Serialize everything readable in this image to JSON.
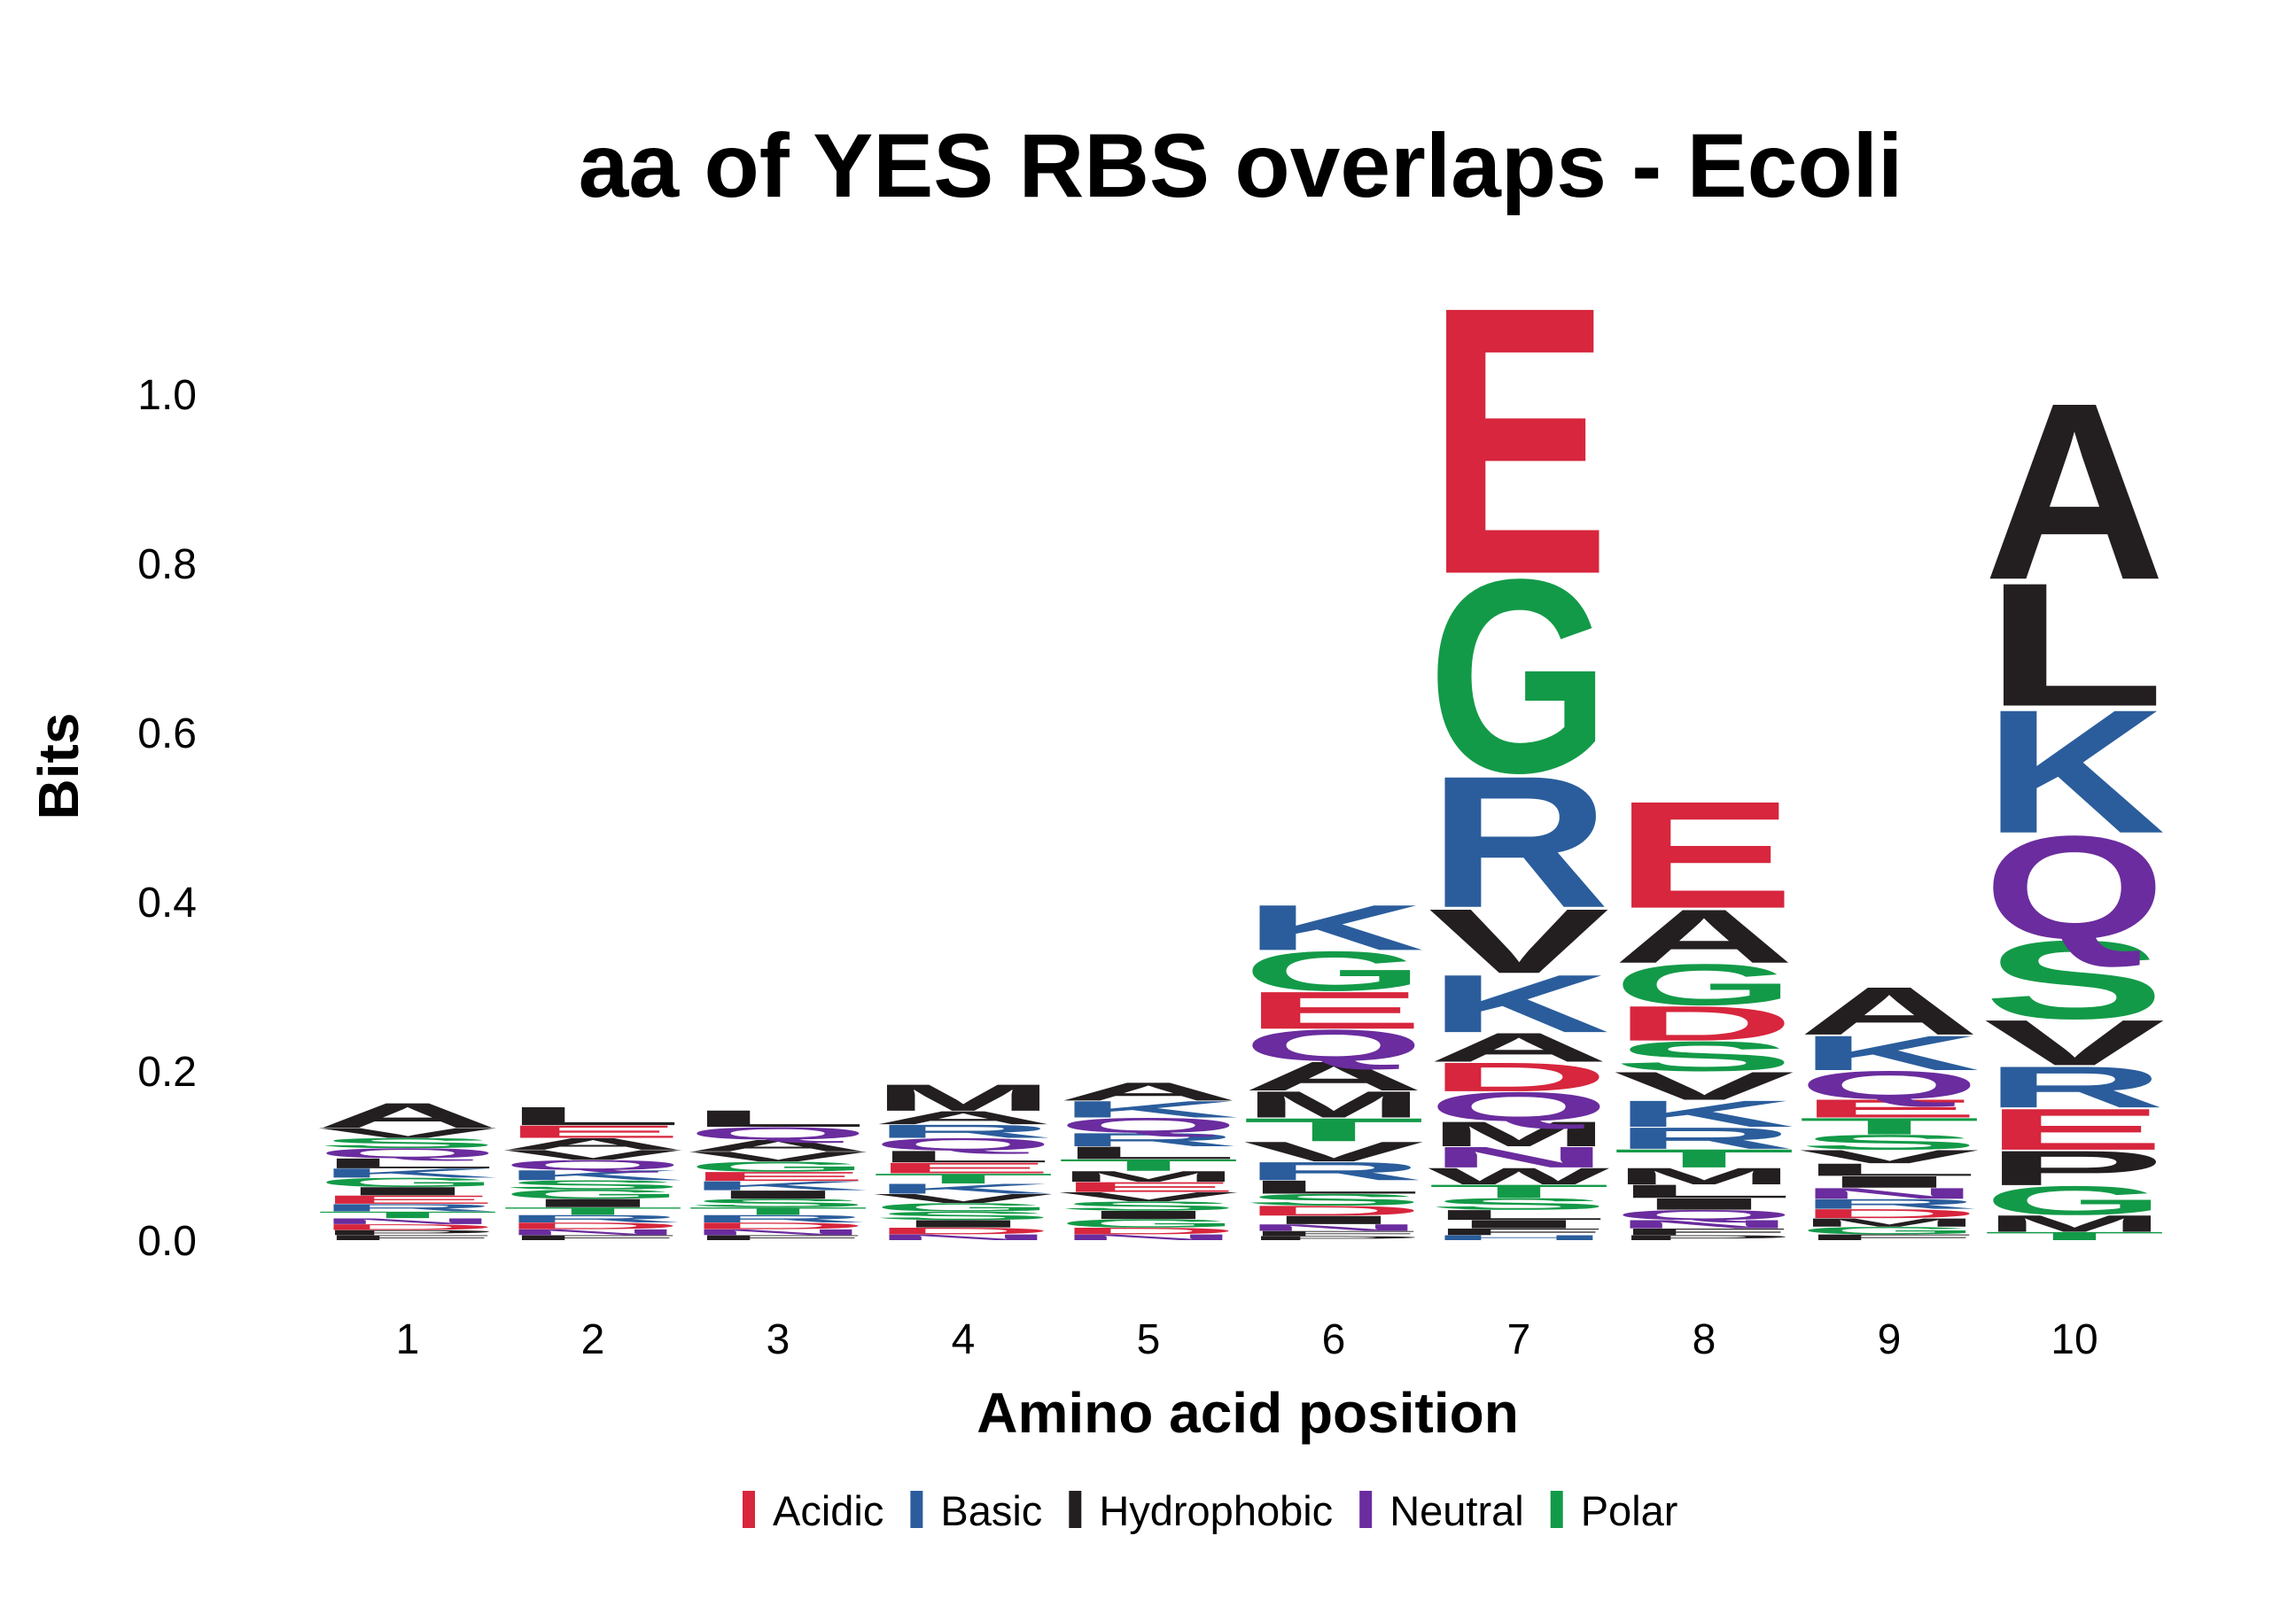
{
  "chart_data": {
    "type": "sequence-logo",
    "title": "aa of YES RBS overlaps - Ecoli",
    "xlabel": "Amino acid position",
    "ylabel": "Bits",
    "ylim": [
      0,
      1.1
    ],
    "yticks": [
      "0.0",
      "0.2",
      "0.4",
      "0.6",
      "0.8",
      "1.0"
    ],
    "ytick_values": [
      0,
      0.2,
      0.4,
      0.6,
      0.8,
      1.0
    ],
    "positions": [
      "1",
      "2",
      "3",
      "4",
      "5",
      "6",
      "7",
      "8",
      "9",
      "10"
    ],
    "legend": {
      "placement": "bottom",
      "items": [
        {
          "label": "Acidic",
          "color": "#d7263d"
        },
        {
          "label": "Basic",
          "color": "#2b5d9c"
        },
        {
          "label": "Hydrophobic",
          "color": "#231f20"
        },
        {
          "label": "Neutral",
          "color": "#6a2c9e"
        },
        {
          "label": "Polar",
          "color": "#139a48"
        }
      ]
    },
    "group_colors": {
      "Acidic": "#d7263d",
      "Basic": "#2b5d9c",
      "Hydrophobic": "#231f20",
      "Neutral": "#6a2c9e",
      "Polar": "#139a48"
    },
    "columns": [
      {
        "position": 1,
        "letters": [
          {
            "aa": "A",
            "bits": 0.03,
            "group": "Hydrophobic"
          },
          {
            "aa": "L",
            "bits": 0.012,
            "group": "Hydrophobic"
          },
          {
            "aa": "Q",
            "bits": 0.012,
            "group": "Neutral"
          },
          {
            "aa": "S",
            "bits": 0.012,
            "group": "Polar"
          },
          {
            "aa": "V",
            "bits": 0.012,
            "group": "Hydrophobic"
          },
          {
            "aa": "G",
            "bits": 0.011,
            "group": "Polar"
          },
          {
            "aa": "K",
            "bits": 0.011,
            "group": "Basic"
          },
          {
            "aa": "E",
            "bits": 0.01,
            "group": "Acidic"
          },
          {
            "aa": "I",
            "bits": 0.01,
            "group": "Hydrophobic"
          },
          {
            "aa": "R",
            "bits": 0.009,
            "group": "Basic"
          },
          {
            "aa": "T",
            "bits": 0.008,
            "group": "Polar"
          },
          {
            "aa": "D",
            "bits": 0.007,
            "group": "Acidic"
          },
          {
            "aa": "N",
            "bits": 0.007,
            "group": "Neutral"
          },
          {
            "aa": "F",
            "bits": 0.006,
            "group": "Hydrophobic"
          },
          {
            "aa": "P",
            "bits": 0.006,
            "group": "Hydrophobic"
          }
        ]
      },
      {
        "position": 2,
        "letters": [
          {
            "aa": "L",
            "bits": 0.022,
            "group": "Hydrophobic"
          },
          {
            "aa": "E",
            "bits": 0.015,
            "group": "Acidic"
          },
          {
            "aa": "A",
            "bits": 0.014,
            "group": "Hydrophobic"
          },
          {
            "aa": "K",
            "bits": 0.012,
            "group": "Basic"
          },
          {
            "aa": "Q",
            "bits": 0.012,
            "group": "Neutral"
          },
          {
            "aa": "V",
            "bits": 0.012,
            "group": "Hydrophobic"
          },
          {
            "aa": "G",
            "bits": 0.011,
            "group": "Polar"
          },
          {
            "aa": "S",
            "bits": 0.011,
            "group": "Polar"
          },
          {
            "aa": "I",
            "bits": 0.01,
            "group": "Hydrophobic"
          },
          {
            "aa": "R",
            "bits": 0.009,
            "group": "Basic"
          },
          {
            "aa": "T",
            "bits": 0.009,
            "group": "Polar"
          },
          {
            "aa": "D",
            "bits": 0.008,
            "group": "Acidic"
          },
          {
            "aa": "N",
            "bits": 0.007,
            "group": "Neutral"
          },
          {
            "aa": "F",
            "bits": 0.006,
            "group": "Hydrophobic"
          }
        ]
      },
      {
        "position": 3,
        "letters": [
          {
            "aa": "L",
            "bits": 0.02,
            "group": "Hydrophobic"
          },
          {
            "aa": "Q",
            "bits": 0.015,
            "group": "Neutral"
          },
          {
            "aa": "A",
            "bits": 0.014,
            "group": "Hydrophobic"
          },
          {
            "aa": "G",
            "bits": 0.012,
            "group": "Polar"
          },
          {
            "aa": "V",
            "bits": 0.012,
            "group": "Hydrophobic"
          },
          {
            "aa": "K",
            "bits": 0.011,
            "group": "Basic"
          },
          {
            "aa": "E",
            "bits": 0.011,
            "group": "Acidic"
          },
          {
            "aa": "S",
            "bits": 0.01,
            "group": "Polar"
          },
          {
            "aa": "I",
            "bits": 0.01,
            "group": "Hydrophobic"
          },
          {
            "aa": "R",
            "bits": 0.009,
            "group": "Basic"
          },
          {
            "aa": "T",
            "bits": 0.009,
            "group": "Polar"
          },
          {
            "aa": "D",
            "bits": 0.008,
            "group": "Acidic"
          },
          {
            "aa": "N",
            "bits": 0.007,
            "group": "Neutral"
          },
          {
            "aa": "F",
            "bits": 0.006,
            "group": "Hydrophobic"
          }
        ]
      },
      {
        "position": 4,
        "letters": [
          {
            "aa": "M",
            "bits": 0.032,
            "group": "Hydrophobic"
          },
          {
            "aa": "R",
            "bits": 0.016,
            "group": "Basic"
          },
          {
            "aa": "A",
            "bits": 0.016,
            "group": "Hydrophobic"
          },
          {
            "aa": "Q",
            "bits": 0.015,
            "group": "Neutral"
          },
          {
            "aa": "L",
            "bits": 0.014,
            "group": "Hydrophobic"
          },
          {
            "aa": "E",
            "bits": 0.013,
            "group": "Acidic"
          },
          {
            "aa": "K",
            "bits": 0.012,
            "group": "Basic"
          },
          {
            "aa": "T",
            "bits": 0.012,
            "group": "Polar"
          },
          {
            "aa": "V",
            "bits": 0.011,
            "group": "Hydrophobic"
          },
          {
            "aa": "S",
            "bits": 0.01,
            "group": "Polar"
          },
          {
            "aa": "G",
            "bits": 0.01,
            "group": "Polar"
          },
          {
            "aa": "I",
            "bits": 0.009,
            "group": "Hydrophobic"
          },
          {
            "aa": "D",
            "bits": 0.008,
            "group": "Acidic"
          },
          {
            "aa": "N",
            "bits": 0.007,
            "group": "Neutral"
          }
        ]
      },
      {
        "position": 5,
        "letters": [
          {
            "aa": "A",
            "bits": 0.022,
            "group": "Hydrophobic"
          },
          {
            "aa": "K",
            "bits": 0.02,
            "group": "Basic"
          },
          {
            "aa": "Q",
            "bits": 0.018,
            "group": "Neutral"
          },
          {
            "aa": "R",
            "bits": 0.016,
            "group": "Basic"
          },
          {
            "aa": "L",
            "bits": 0.015,
            "group": "Hydrophobic"
          },
          {
            "aa": "T",
            "bits": 0.014,
            "group": "Polar"
          },
          {
            "aa": "M",
            "bits": 0.013,
            "group": "Hydrophobic"
          },
          {
            "aa": "E",
            "bits": 0.012,
            "group": "Acidic"
          },
          {
            "aa": "S",
            "bits": 0.011,
            "group": "Polar"
          },
          {
            "aa": "V",
            "bits": 0.011,
            "group": "Hydrophobic"
          },
          {
            "aa": "G",
            "bits": 0.01,
            "group": "Polar"
          },
          {
            "aa": "I",
            "bits": 0.01,
            "group": "Hydrophobic"
          },
          {
            "aa": "D",
            "bits": 0.008,
            "group": "Acidic"
          },
          {
            "aa": "N",
            "bits": 0.007,
            "group": "Neutral"
          }
        ]
      },
      {
        "position": 6,
        "letters": [
          {
            "aa": "K",
            "bits": 0.055,
            "group": "Basic"
          },
          {
            "aa": "G",
            "bits": 0.048,
            "group": "Polar"
          },
          {
            "aa": "E",
            "bits": 0.045,
            "group": "Acidic"
          },
          {
            "aa": "Q",
            "bits": 0.038,
            "group": "Neutral"
          },
          {
            "aa": "A",
            "bits": 0.035,
            "group": "Hydrophobic"
          },
          {
            "aa": "M",
            "bits": 0.032,
            "group": "Hydrophobic"
          },
          {
            "aa": "T",
            "bits": 0.028,
            "group": "Polar"
          },
          {
            "aa": "V",
            "bits": 0.024,
            "group": "Hydrophobic"
          },
          {
            "aa": "R",
            "bits": 0.022,
            "group": "Basic"
          },
          {
            "aa": "L",
            "bits": 0.016,
            "group": "Hydrophobic"
          },
          {
            "aa": "S",
            "bits": 0.014,
            "group": "Polar"
          },
          {
            "aa": "D",
            "bits": 0.012,
            "group": "Acidic"
          },
          {
            "aa": "I",
            "bits": 0.01,
            "group": "Hydrophobic"
          },
          {
            "aa": "N",
            "bits": 0.008,
            "group": "Neutral"
          },
          {
            "aa": "F",
            "bits": 0.006,
            "group": "Hydrophobic"
          },
          {
            "aa": "P",
            "bits": 0.005,
            "group": "Hydrophobic"
          }
        ]
      },
      {
        "position": 7,
        "letters": [
          {
            "aa": "E",
            "bits": 0.325,
            "group": "Acidic"
          },
          {
            "aa": "G",
            "bits": 0.235,
            "group": "Polar"
          },
          {
            "aa": "R",
            "bits": 0.16,
            "group": "Basic"
          },
          {
            "aa": "V",
            "bits": 0.078,
            "group": "Hydrophobic"
          },
          {
            "aa": "K",
            "bits": 0.07,
            "group": "Basic"
          },
          {
            "aa": "Q",
            "bits": 0.035,
            "group": "Neutral"
          },
          {
            "aa": "D",
            "bits": 0.035,
            "group": "Acidic"
          },
          {
            "aa": "A",
            "bits": 0.035,
            "group": "Hydrophobic"
          },
          {
            "aa": "M",
            "bits": 0.03,
            "group": "Hydrophobic"
          },
          {
            "aa": "N",
            "bits": 0.025,
            "group": "Neutral"
          },
          {
            "aa": "W",
            "bits": 0.02,
            "group": "Hydrophobic"
          },
          {
            "aa": "T",
            "bits": 0.016,
            "group": "Polar"
          },
          {
            "aa": "S",
            "bits": 0.014,
            "group": "Polar"
          },
          {
            "aa": "L",
            "bits": 0.012,
            "group": "Hydrophobic"
          },
          {
            "aa": "I",
            "bits": 0.01,
            "group": "Hydrophobic"
          },
          {
            "aa": "F",
            "bits": 0.008,
            "group": "Hydrophobic"
          },
          {
            "aa": "H",
            "bits": 0.006,
            "group": "Basic"
          }
        ]
      },
      {
        "position": 8,
        "letters": [
          {
            "aa": "E",
            "bits": 0.13,
            "group": "Acidic"
          },
          {
            "aa": "A",
            "bits": 0.065,
            "group": "Hydrophobic"
          },
          {
            "aa": "G",
            "bits": 0.05,
            "group": "Polar"
          },
          {
            "aa": "D",
            "bits": 0.042,
            "group": "Acidic"
          },
          {
            "aa": "S",
            "bits": 0.036,
            "group": "Polar"
          },
          {
            "aa": "V",
            "bits": 0.034,
            "group": "Hydrophobic"
          },
          {
            "aa": "K",
            "bits": 0.032,
            "group": "Basic"
          },
          {
            "aa": "R",
            "bits": 0.026,
            "group": "Basic"
          },
          {
            "aa": "T",
            "bits": 0.022,
            "group": "Polar"
          },
          {
            "aa": "M",
            "bits": 0.02,
            "group": "Hydrophobic"
          },
          {
            "aa": "L",
            "bits": 0.016,
            "group": "Hydrophobic"
          },
          {
            "aa": "I",
            "bits": 0.014,
            "group": "Hydrophobic"
          },
          {
            "aa": "Q",
            "bits": 0.012,
            "group": "Neutral"
          },
          {
            "aa": "N",
            "bits": 0.01,
            "group": "Neutral"
          },
          {
            "aa": "F",
            "bits": 0.008,
            "group": "Hydrophobic"
          },
          {
            "aa": "P",
            "bits": 0.006,
            "group": "Hydrophobic"
          }
        ]
      },
      {
        "position": 9,
        "letters": [
          {
            "aa": "A",
            "bits": 0.058,
            "group": "Hydrophobic"
          },
          {
            "aa": "K",
            "bits": 0.042,
            "group": "Basic"
          },
          {
            "aa": "Q",
            "bits": 0.034,
            "group": "Neutral"
          },
          {
            "aa": "E",
            "bits": 0.022,
            "group": "Acidic"
          },
          {
            "aa": "T",
            "bits": 0.02,
            "group": "Polar"
          },
          {
            "aa": "S",
            "bits": 0.018,
            "group": "Polar"
          },
          {
            "aa": "V",
            "bits": 0.016,
            "group": "Hydrophobic"
          },
          {
            "aa": "L",
            "bits": 0.015,
            "group": "Hydrophobic"
          },
          {
            "aa": "I",
            "bits": 0.014,
            "group": "Hydrophobic"
          },
          {
            "aa": "N",
            "bits": 0.013,
            "group": "Neutral"
          },
          {
            "aa": "R",
            "bits": 0.012,
            "group": "Basic"
          },
          {
            "aa": "D",
            "bits": 0.011,
            "group": "Acidic"
          },
          {
            "aa": "M",
            "bits": 0.01,
            "group": "Hydrophobic"
          },
          {
            "aa": "G",
            "bits": 0.009,
            "group": "Polar"
          },
          {
            "aa": "F",
            "bits": 0.007,
            "group": "Hydrophobic"
          }
        ]
      },
      {
        "position": 10,
        "letters": [
          {
            "aa": "A",
            "bits": 0.215,
            "group": "Hydrophobic"
          },
          {
            "aa": "K",
            "bits": 0.15,
            "group": "Basic"
          },
          {
            "aa": "L",
            "bits": 0.15,
            "group": "Hydrophobic"
          },
          {
            "aa": "Q",
            "bits": 0.125,
            "group": "Neutral"
          },
          {
            "aa": "S",
            "bits": 0.095,
            "group": "Polar"
          },
          {
            "aa": "V",
            "bits": 0.055,
            "group": "Hydrophobic"
          },
          {
            "aa": "E",
            "bits": 0.05,
            "group": "Acidic"
          },
          {
            "aa": "R",
            "bits": 0.05,
            "group": "Basic"
          },
          {
            "aa": "P",
            "bits": 0.042,
            "group": "Hydrophobic"
          },
          {
            "aa": "G",
            "bits": 0.035,
            "group": "Polar"
          },
          {
            "aa": "M",
            "bits": 0.02,
            "group": "Hydrophobic"
          },
          {
            "aa": "T",
            "bits": 0.01,
            "group": "Polar"
          }
        ]
      }
    ]
  }
}
